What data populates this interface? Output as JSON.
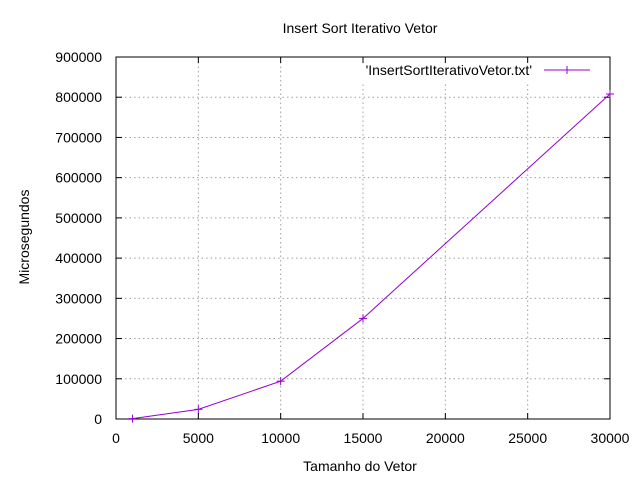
{
  "chart_data": {
    "type": "line",
    "title": "Insert Sort Iterativo Vetor",
    "xlabel": "Tamanho do Vetor",
    "ylabel": "Microsegundos",
    "xlim": [
      0,
      30000
    ],
    "ylim": [
      0,
      900000
    ],
    "x_ticks": [
      0,
      5000,
      10000,
      15000,
      20000,
      25000,
      30000
    ],
    "y_ticks": [
      0,
      100000,
      200000,
      300000,
      400000,
      500000,
      600000,
      700000,
      800000,
      900000
    ],
    "grid": true,
    "legend_position": "top-right",
    "series": [
      {
        "name": "'InsertSortIterativoVetor.txt'",
        "color": "#9400d3",
        "marker": "plus",
        "x": [
          1000,
          5000,
          10000,
          15000,
          30000
        ],
        "y": [
          1000,
          24000,
          94000,
          250000,
          808000
        ]
      }
    ]
  }
}
